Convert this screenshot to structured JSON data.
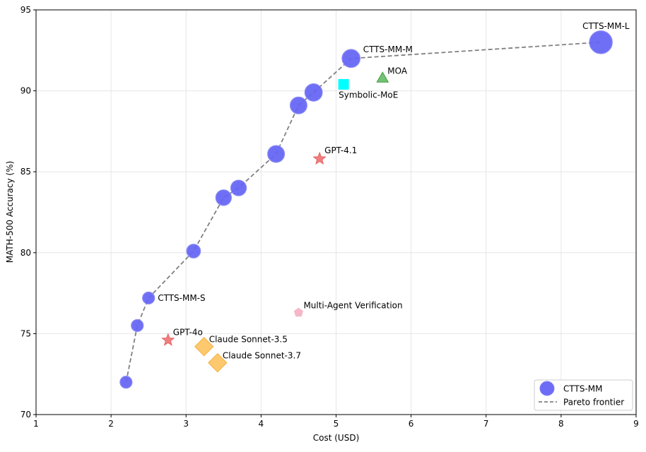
{
  "chart_data": {
    "type": "scatter",
    "title": "",
    "xlabel": "Cost (USD)",
    "ylabel": "MATH-500 Accuracy (%)",
    "xlim": [
      1,
      9
    ],
    "ylim": [
      70,
      95
    ],
    "xticks": [
      1,
      2,
      3,
      4,
      5,
      6,
      7,
      8,
      9
    ],
    "yticks": [
      70,
      75,
      80,
      85,
      90,
      95
    ],
    "grid": true,
    "legend_position": "bottom-right",
    "legend": [
      {
        "label": "CTTS-MM",
        "kind": "marker"
      },
      {
        "label": "Pareto frontier",
        "kind": "dashed-line"
      }
    ],
    "series": [
      {
        "name": "CTTS-MM",
        "marker": "circle",
        "color": "#6464f5",
        "points": [
          {
            "x": 2.2,
            "y": 72.0,
            "size": 1
          },
          {
            "x": 2.35,
            "y": 75.5,
            "size": 1
          },
          {
            "x": 2.5,
            "y": 77.2,
            "size": 1,
            "label": "CTTS-MM-S"
          },
          {
            "x": 3.1,
            "y": 80.1,
            "size": 1.15
          },
          {
            "x": 3.5,
            "y": 83.4,
            "size": 1.3
          },
          {
            "x": 3.7,
            "y": 84.0,
            "size": 1.3
          },
          {
            "x": 4.2,
            "y": 86.1,
            "size": 1.4
          },
          {
            "x": 4.5,
            "y": 89.1,
            "size": 1.4
          },
          {
            "x": 4.7,
            "y": 89.9,
            "size": 1.45
          },
          {
            "x": 5.2,
            "y": 92.0,
            "size": 1.5,
            "label": "CTTS-MM-M"
          },
          {
            "x": 8.53,
            "y": 93.0,
            "size": 1.9,
            "label": "CTTS-MM-L"
          }
        ]
      },
      {
        "name": "Pareto frontier",
        "type": "line",
        "style": "dashed",
        "color": "#808080",
        "x": [
          2.2,
          2.35,
          2.5,
          3.1,
          3.5,
          3.7,
          4.2,
          4.5,
          4.7,
          5.2,
          8.53
        ],
        "y": [
          72.0,
          75.5,
          77.2,
          80.1,
          83.4,
          84.0,
          86.1,
          89.1,
          89.9,
          92.0,
          93.0
        ]
      },
      {
        "name": "Symbolic-MoE",
        "marker": "square",
        "color": "#00ffff",
        "points": [
          {
            "x": 5.1,
            "y": 90.4,
            "label": "Symbolic-MoE"
          }
        ]
      },
      {
        "name": "MOA",
        "marker": "triangle",
        "color": "#5cb85c",
        "points": [
          {
            "x": 5.62,
            "y": 90.8,
            "label": "MOA"
          }
        ]
      },
      {
        "name": "GPT-4.1",
        "marker": "star",
        "color": "#f07070",
        "points": [
          {
            "x": 4.78,
            "y": 85.8,
            "label": "GPT-4.1"
          }
        ]
      },
      {
        "name": "GPT-4o",
        "marker": "star",
        "color": "#f07070",
        "points": [
          {
            "x": 2.76,
            "y": 74.6,
            "label": "GPT-4o"
          }
        ]
      },
      {
        "name": "Multi-Agent Verification",
        "marker": "pentagon",
        "color": "#f4b8c8",
        "points": [
          {
            "x": 4.5,
            "y": 76.3,
            "label": "Multi-Agent Verification"
          }
        ]
      },
      {
        "name": "Claude Sonnet-3.5",
        "marker": "diamond",
        "color": "#fbbf55",
        "points": [
          {
            "x": 3.24,
            "y": 74.2,
            "label": "Claude Sonnet-3.5"
          }
        ]
      },
      {
        "name": "Claude Sonnet-3.7",
        "marker": "diamond",
        "color": "#fbbf55",
        "points": [
          {
            "x": 3.42,
            "y": 73.2,
            "label": "Claude Sonnet-3.7"
          }
        ]
      }
    ]
  }
}
